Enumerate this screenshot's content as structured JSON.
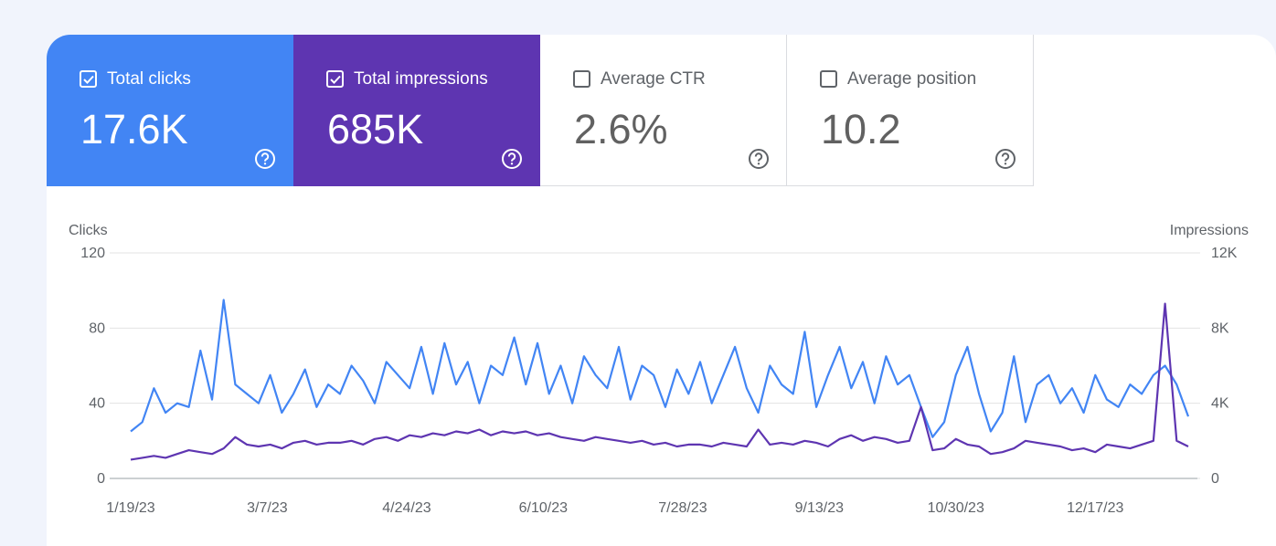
{
  "metrics": [
    {
      "label": "Total clicks",
      "value": "17.6K",
      "checked": true,
      "color": "#4285f4"
    },
    {
      "label": "Total impressions",
      "value": "685K",
      "checked": true,
      "color": "#5e35b1"
    },
    {
      "label": "Average CTR",
      "value": "2.6%",
      "checked": false,
      "color": "#ffffff"
    },
    {
      "label": "Average position",
      "value": "10.2",
      "checked": false,
      "color": "#ffffff"
    }
  ],
  "chart_data": {
    "type": "line",
    "y_label": "Clicks",
    "y2_label": "Impressions",
    "x": [
      "1/19/23",
      "1/23/23",
      "1/27/23",
      "1/31/23",
      "2/4/23",
      "2/8/23",
      "2/12/23",
      "2/16/23",
      "2/20/23",
      "2/24/23",
      "2/28/23",
      "3/4/23",
      "3/8/23",
      "3/12/23",
      "3/16/23",
      "3/20/23",
      "3/24/23",
      "3/28/23",
      "4/1/23",
      "4/5/23",
      "4/9/23",
      "4/13/23",
      "4/17/23",
      "4/21/23",
      "4/25/23",
      "4/29/23",
      "5/3/23",
      "5/7/23",
      "5/11/23",
      "5/15/23",
      "5/19/23",
      "5/23/23",
      "5/27/23",
      "5/31/23",
      "6/4/23",
      "6/8/23",
      "6/12/23",
      "6/16/23",
      "6/20/23",
      "6/24/23",
      "6/28/23",
      "7/2/23",
      "7/6/23",
      "7/10/23",
      "7/14/23",
      "7/18/23",
      "7/22/23",
      "7/26/23",
      "7/30/23",
      "8/3/23",
      "8/7/23",
      "8/11/23",
      "8/15/23",
      "8/19/23",
      "8/23/23",
      "8/27/23",
      "8/31/23",
      "9/4/23",
      "9/8/23",
      "9/12/23",
      "9/16/23",
      "9/20/23",
      "9/24/23",
      "9/28/23",
      "10/2/23",
      "10/6/23",
      "10/10/23",
      "10/14/23",
      "10/18/23",
      "10/22/23",
      "10/26/23",
      "10/30/23",
      "11/3/23",
      "11/7/23",
      "11/11/23",
      "11/15/23",
      "11/19/23",
      "11/23/23",
      "11/27/23",
      "12/1/23",
      "12/5/23",
      "12/9/23",
      "12/13/23",
      "12/17/23",
      "12/21/23",
      "12/25/23",
      "12/29/23",
      "1/2/24",
      "1/6/24",
      "1/10/24",
      "1/14/24",
      "1/18/24"
    ],
    "series": [
      {
        "name": "Clicks",
        "color": "#4285f4",
        "values": [
          25,
          30,
          48,
          35,
          40,
          38,
          68,
          42,
          95,
          50,
          45,
          40,
          55,
          35,
          45,
          58,
          38,
          50,
          45,
          60,
          52,
          40,
          62,
          55,
          48,
          70,
          45,
          72,
          50,
          62,
          40,
          60,
          55,
          75,
          50,
          72,
          45,
          60,
          40,
          65,
          55,
          48,
          70,
          42,
          60,
          55,
          38,
          58,
          45,
          62,
          40,
          55,
          70,
          48,
          35,
          60,
          50,
          45,
          78,
          38,
          55,
          70,
          48,
          62,
          40,
          65,
          50,
          55,
          38,
          22,
          30,
          55,
          70,
          45,
          25,
          35,
          65,
          30,
          50,
          55,
          40,
          48,
          35,
          55,
          42,
          38,
          50,
          45,
          55,
          60,
          50,
          33
        ]
      },
      {
        "name": "Impressions",
        "color": "#5e35b1",
        "axis": "y2",
        "values": [
          1000,
          1100,
          1200,
          1100,
          1300,
          1500,
          1400,
          1300,
          1600,
          2200,
          1800,
          1700,
          1800,
          1600,
          1900,
          2000,
          1800,
          1900,
          1900,
          2000,
          1800,
          2100,
          2200,
          2000,
          2300,
          2200,
          2400,
          2300,
          2500,
          2400,
          2600,
          2300,
          2500,
          2400,
          2500,
          2300,
          2400,
          2200,
          2100,
          2000,
          2200,
          2100,
          2000,
          1900,
          2000,
          1800,
          1900,
          1700,
          1800,
          1800,
          1700,
          1900,
          1800,
          1700,
          2600,
          1800,
          1900,
          1800,
          2000,
          1900,
          1700,
          2100,
          2300,
          2000,
          2200,
          2100,
          1900,
          2000,
          3800,
          1500,
          1600,
          2100,
          1800,
          1700,
          1300,
          1400,
          1600,
          2000,
          1900,
          1800,
          1700,
          1500,
          1600,
          1400,
          1800,
          1700,
          1600,
          1800,
          2000,
          9300,
          2000,
          1700
        ]
      }
    ],
    "xticks": [
      "1/19/23",
      "3/7/23",
      "4/24/23",
      "6/10/23",
      "7/28/23",
      "9/13/23",
      "10/30/23",
      "12/17/23"
    ],
    "ylim": [
      0,
      120
    ],
    "yticks": [
      0,
      40,
      80,
      120
    ],
    "y2lim": [
      0,
      12000
    ],
    "y2ticks": [
      0,
      {
        "value": 4000,
        "label": "4K"
      },
      {
        "value": 8000,
        "label": "8K"
      },
      {
        "value": 12000,
        "label": "12K"
      }
    ],
    "grid": true
  }
}
